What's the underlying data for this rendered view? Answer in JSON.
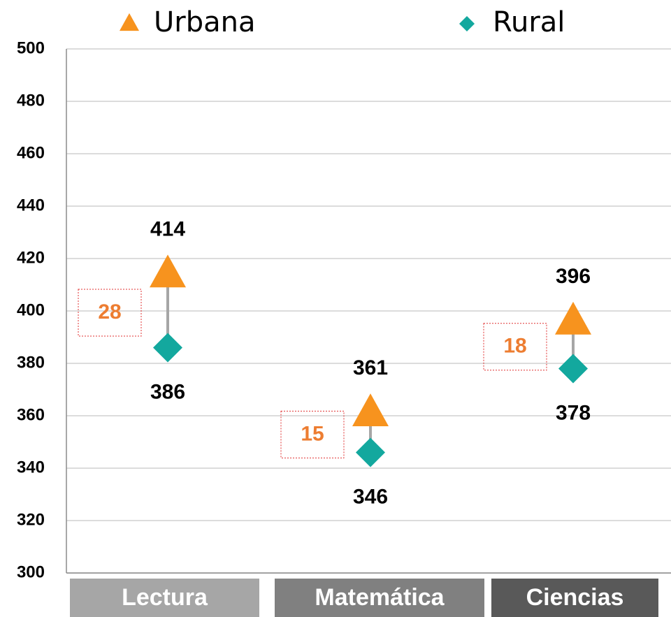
{
  "chart_data": {
    "type": "dumbbell",
    "categories": [
      "Lectura",
      "Matemática",
      "Ciencias"
    ],
    "category_colors": [
      "#a6a6a6",
      "#808080",
      "#595959"
    ],
    "series": [
      {
        "name": "Urbana",
        "color": "#f7931e",
        "marker": "triangle",
        "values": [
          414,
          361,
          396
        ]
      },
      {
        "name": "Rural",
        "color": "#13a89e",
        "marker": "diamond",
        "values": [
          386,
          346,
          378
        ]
      }
    ],
    "annotations": [
      28,
      15,
      18
    ],
    "annotation_color": "#ed7d31",
    "ylim": [
      300,
      500
    ],
    "yticks": [
      300,
      320,
      340,
      360,
      380,
      400,
      420,
      440,
      460,
      480,
      500
    ],
    "grid": true
  }
}
